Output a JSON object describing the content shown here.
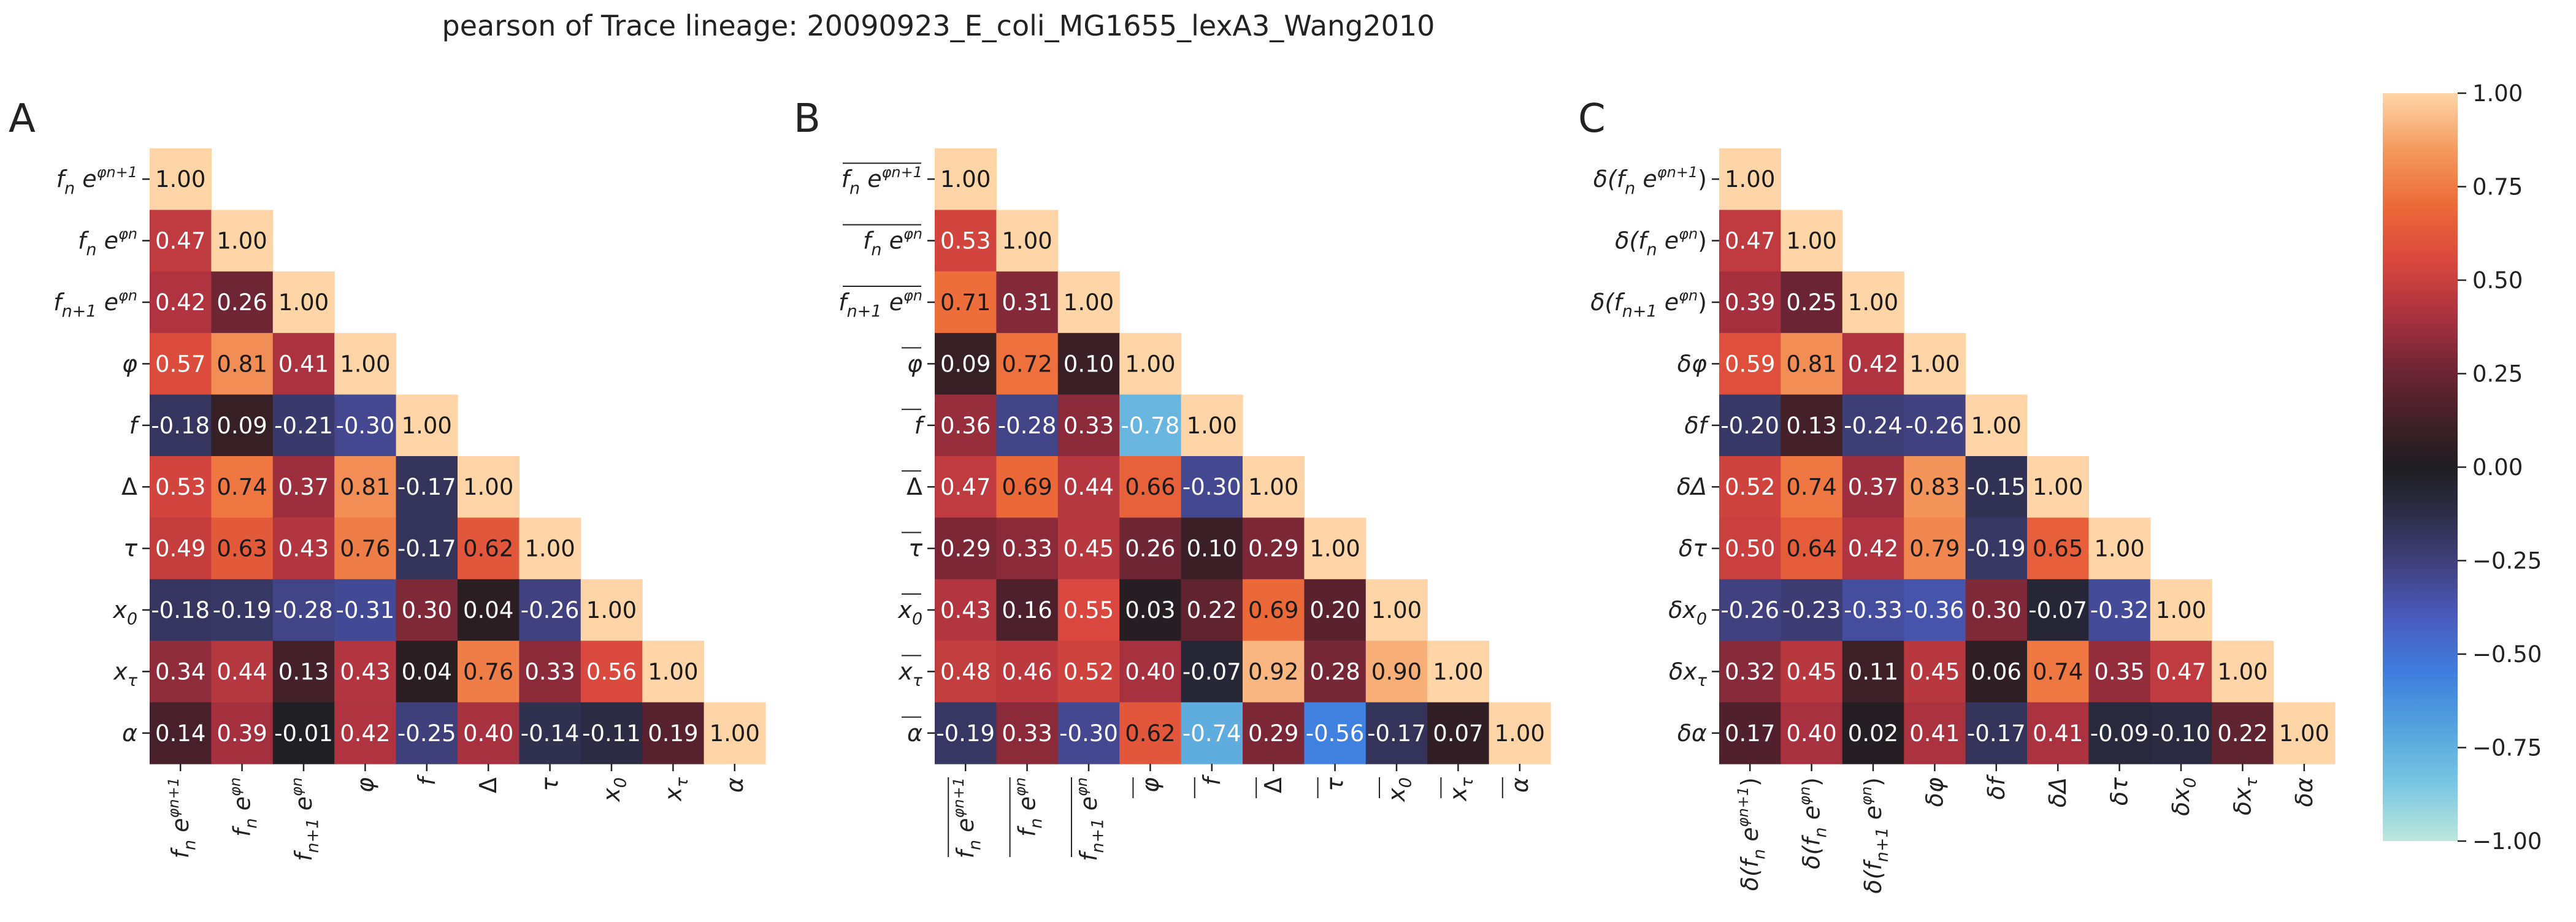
{
  "title": "pearson of Trace lineage: 20090923_E_coli_MG1655_lexA3_Wang2010",
  "colorbar": {
    "tick_labels": [
      "1.00",
      "0.75",
      "0.50",
      "0.25",
      "0.00",
      "−0.25",
      "−0.50",
      "−0.75",
      "−1.00"
    ],
    "tick_values": [
      1.0,
      0.75,
      0.5,
      0.25,
      0.0,
      -0.25,
      -0.5,
      -0.75,
      -1.0
    ],
    "range": [
      -1.0,
      1.0
    ],
    "colormap": "icefire",
    "colormap_stops": [
      [
        -1.0,
        "#bde7db"
      ],
      [
        -0.85,
        "#7ac7e2"
      ],
      [
        -0.7,
        "#54a3dd"
      ],
      [
        -0.55,
        "#3f7ede"
      ],
      [
        -0.4,
        "#4a5bbd"
      ],
      [
        -0.25,
        "#3f3f7a"
      ],
      [
        -0.1,
        "#2a2a40"
      ],
      [
        0.0,
        "#1f1e21"
      ],
      [
        0.1,
        "#3a1f26"
      ],
      [
        0.25,
        "#6a2433"
      ],
      [
        0.4,
        "#a8313f"
      ],
      [
        0.55,
        "#d9473e"
      ],
      [
        0.7,
        "#ec6a38"
      ],
      [
        0.85,
        "#f49a5f"
      ],
      [
        1.0,
        "#ffd5a7"
      ]
    ]
  },
  "chart_data": [
    {
      "type": "heatmap",
      "panel_label": "A",
      "variables": [
        "f_n e^{φ_{n+1}}",
        "f_n e^{φ_n}",
        "f_{n+1} e^{φ_n}",
        "φ",
        "f",
        "Δ",
        "τ",
        "x_0",
        "x_τ",
        "α"
      ],
      "annotations": [
        [
          "1.00"
        ],
        [
          "0.47",
          "1.00"
        ],
        [
          "0.42",
          "0.26",
          "1.00"
        ],
        [
          "0.57",
          "0.81",
          "0.41",
          "1.00"
        ],
        [
          "-0.18",
          "0.09",
          "-0.21",
          "-0.30",
          "1.00"
        ],
        [
          "0.53",
          "0.74",
          "0.37",
          "0.81",
          "-0.17",
          "1.00"
        ],
        [
          "0.49",
          "0.63",
          "0.43",
          "0.76",
          "-0.17",
          "0.62",
          "1.00"
        ],
        [
          "-0.18",
          "-0.19",
          "-0.28",
          "-0.31",
          "0.30",
          "0.04",
          "-0.26",
          "1.00"
        ],
        [
          "0.34",
          "0.44",
          "0.13",
          "0.43",
          "0.04",
          "0.76",
          "0.33",
          "0.56",
          "1.00"
        ],
        [
          "0.14",
          "0.39",
          "-0.01",
          "0.42",
          "-0.25",
          "0.40",
          "-0.14",
          "-0.11",
          "0.19",
          "1.00"
        ]
      ]
    },
    {
      "type": "heatmap",
      "panel_label": "B",
      "variables": [
        "mean(f_n e^{φ_{n+1}})",
        "mean(f_n e^{φ_n})",
        "mean(f_{n+1} e^{φ_n})",
        "mean(φ)",
        "mean(f)",
        "mean(Δ)",
        "mean(τ)",
        "mean(x_0)",
        "mean(x_τ)",
        "mean(α)"
      ],
      "annotations": [
        [
          "1.00"
        ],
        [
          "0.53",
          "1.00"
        ],
        [
          "0.71",
          "0.31",
          "1.00"
        ],
        [
          "0.09",
          "0.72",
          "0.10",
          "1.00"
        ],
        [
          "0.36",
          "-0.28",
          "0.33",
          "-0.78",
          "1.00"
        ],
        [
          "0.47",
          "0.69",
          "0.44",
          "0.66",
          "-0.30",
          "1.00"
        ],
        [
          "0.29",
          "0.33",
          "0.45",
          "0.26",
          "0.10",
          "0.29",
          "1.00"
        ],
        [
          "0.43",
          "0.16",
          "0.55",
          "0.03",
          "0.22",
          "0.69",
          "0.20",
          "1.00"
        ],
        [
          "0.48",
          "0.46",
          "0.52",
          "0.40",
          "-0.07",
          "0.92",
          "0.28",
          "0.90",
          "1.00"
        ],
        [
          "-0.19",
          "0.33",
          "-0.30",
          "0.62",
          "-0.74",
          "0.29",
          "-0.56",
          "-0.17",
          "0.07",
          "1.00"
        ]
      ]
    },
    {
      "type": "heatmap",
      "panel_label": "C",
      "variables": [
        "δ(f_n e^{φ_{n+1}})",
        "δ(f_n e^{φ_n})",
        "δ(f_{n+1} e^{φ_n})",
        "δφ",
        "δf",
        "δΔ",
        "δτ",
        "δx_0",
        "δx_τ",
        "δα"
      ],
      "annotations": [
        [
          "1.00"
        ],
        [
          "0.47",
          "1.00"
        ],
        [
          "0.39",
          "0.25",
          "1.00"
        ],
        [
          "0.59",
          "0.81",
          "0.42",
          "1.00"
        ],
        [
          "-0.20",
          "0.13",
          "-0.24",
          "-0.26",
          "1.00"
        ],
        [
          "0.52",
          "0.74",
          "0.37",
          "0.83",
          "-0.15",
          "1.00"
        ],
        [
          "0.50",
          "0.64",
          "0.42",
          "0.79",
          "-0.19",
          "0.65",
          "1.00"
        ],
        [
          "-0.26",
          "-0.23",
          "-0.33",
          "-0.36",
          "0.30",
          "-0.07",
          "-0.32",
          "1.00"
        ],
        [
          "0.32",
          "0.45",
          "0.11",
          "0.45",
          "0.06",
          "0.74",
          "0.35",
          "0.47",
          "1.00"
        ],
        [
          "0.17",
          "0.40",
          "0.02",
          "0.41",
          "-0.17",
          "0.41",
          "-0.09",
          "-0.10",
          "0.22",
          "1.00"
        ]
      ]
    }
  ]
}
